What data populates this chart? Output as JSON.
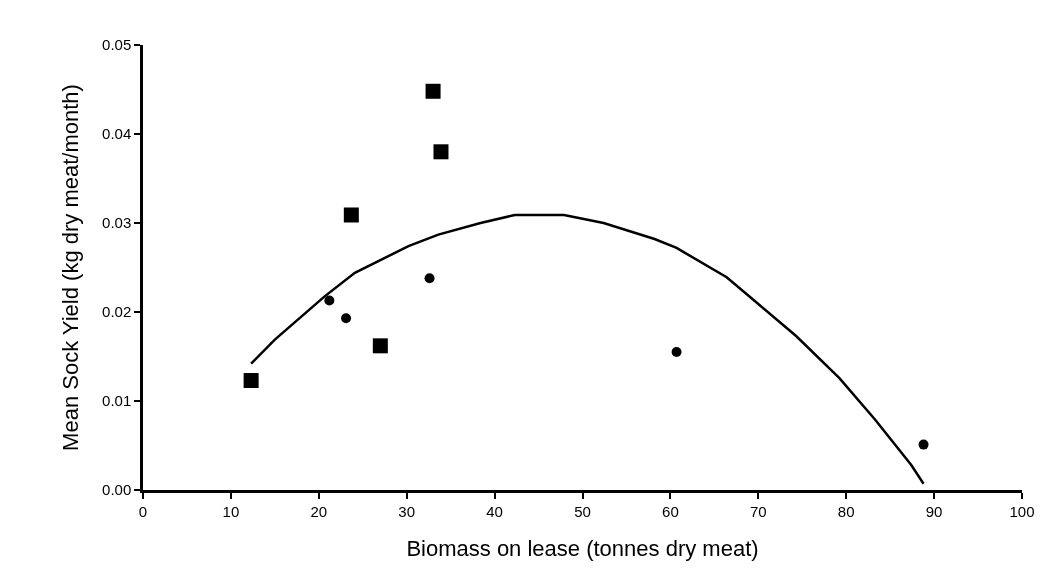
{
  "chart_data": {
    "type": "scatter",
    "xlabel": "Biomass on lease (tonnes dry meat)",
    "ylabel": "Mean Sock Yield (kg dry meat/month)",
    "xlim": [
      0,
      100
    ],
    "xticks": [
      0,
      10,
      20,
      30,
      40,
      50,
      60,
      70,
      80,
      90,
      100
    ],
    "ylim": [
      0,
      0.05
    ],
    "yticks": [
      {
        "value": 0,
        "label": "0.00"
      },
      {
        "value": 0.01,
        "label": "0.01"
      },
      {
        "value": 0.02,
        "label": "0.02"
      },
      {
        "value": 0.03,
        "label": "0.03"
      },
      {
        "value": 0.04,
        "label": "0.04"
      },
      {
        "value": 0.05,
        "label": "0.05"
      }
    ],
    "grid": false,
    "series": [
      {
        "type": "scatter",
        "marker": "square",
        "color": "#000000",
        "x": [
          12.3,
          23.7,
          27.0,
          33.0,
          33.9
        ],
        "values": [
          0.0123,
          0.0309,
          0.0162,
          0.0448,
          0.038
        ]
      },
      {
        "type": "scatter",
        "marker": "circle",
        "color": "#000000",
        "x": [
          21.2,
          23.1,
          32.6,
          60.7,
          88.8
        ],
        "values": [
          0.0213,
          0.0193,
          0.0238,
          0.0155,
          0.0051
        ]
      },
      {
        "type": "line",
        "marker": "none",
        "line_style": "solid",
        "color": "#000000",
        "x": [
          12.3,
          15.0,
          20.6,
          24.1,
          30.2,
          33.6,
          38.4,
          42.3,
          47.9,
          52.4,
          58.2,
          60.7,
          66.4,
          69.4,
          74.3,
          79.2,
          83.3,
          87.4,
          88.8
        ],
        "values": [
          0.0142,
          0.0169,
          0.0217,
          0.0244,
          0.0274,
          0.0287,
          0.03,
          0.0309,
          0.0309,
          0.03,
          0.0282,
          0.0272,
          0.0239,
          0.0214,
          0.0173,
          0.0126,
          0.0079,
          0.0028,
          0.0007
        ]
      }
    ]
  }
}
